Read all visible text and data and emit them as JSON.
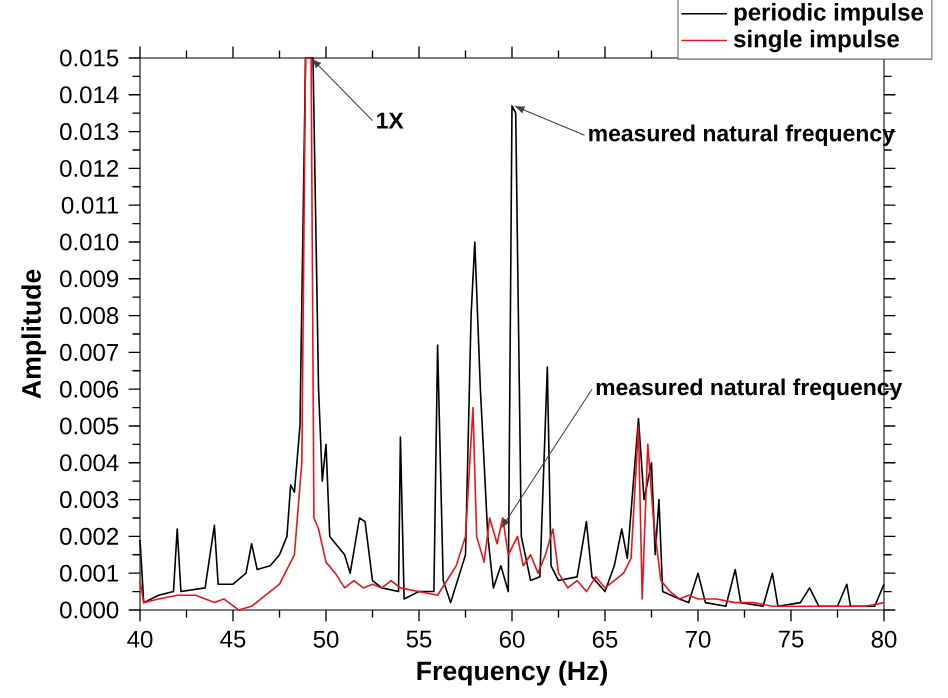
{
  "chart_data": {
    "type": "line",
    "xlabel": "Frequency (Hz)",
    "ylabel": "Amplitude",
    "xlim": [
      40,
      80
    ],
    "xticks": [
      40,
      45,
      50,
      55,
      60,
      65,
      70,
      75,
      80
    ],
    "ylim": [
      0,
      0.015
    ],
    "yticks": [
      {
        "value": 0,
        "label": "0.000"
      },
      {
        "value": 0.001,
        "label": "0.001"
      },
      {
        "value": 0.002,
        "label": "0.002"
      },
      {
        "value": 0.003,
        "label": "0.003"
      },
      {
        "value": 0.004,
        "label": "0.004"
      },
      {
        "value": 0.005,
        "label": "0.005"
      },
      {
        "value": 0.006,
        "label": "0.006"
      },
      {
        "value": 0.007,
        "label": "0.007"
      },
      {
        "value": 0.008,
        "label": "0.008"
      },
      {
        "value": 0.009,
        "label": "0.009"
      },
      {
        "value": 0.01,
        "label": "0.010"
      },
      {
        "value": 0.011,
        "label": "0.011"
      },
      {
        "value": 0.012,
        "label": "0.012"
      },
      {
        "value": 0.013,
        "label": "0.013"
      },
      {
        "value": 0.014,
        "label": "0.014"
      },
      {
        "value": 0.015,
        "label": "0.015"
      }
    ],
    "legend": "top right",
    "grid": false,
    "marker": "none",
    "line_style": "solid",
    "series": [
      {
        "name": "periodic impulse",
        "color": "#000000",
        "x": [
          40,
          40.2,
          41,
          41.8,
          42,
          42.2,
          43.5,
          44,
          44.2,
          45,
          45.7,
          46,
          46.3,
          47,
          47.5,
          47.9,
          48.1,
          48.3,
          48.6,
          48.9,
          49.3,
          49.6,
          49.8,
          50,
          50.2,
          51,
          51.3,
          51.8,
          52.1,
          52.5,
          53,
          53.9,
          54,
          54.2,
          55,
          55.8,
          56,
          56.3,
          56.7,
          57.5,
          57.8,
          58,
          58.3,
          58.7,
          59,
          59.4,
          59.8,
          60,
          60.2,
          60.5,
          61,
          61.5,
          61.9,
          62.1,
          62.5,
          63.5,
          64,
          64.3,
          65,
          65.5,
          65.9,
          66.2,
          66.8,
          67.1,
          67.5,
          67.7,
          67.9,
          68.1,
          69,
          69.5,
          70,
          70.4,
          71.5,
          72,
          72.3,
          73.5,
          74,
          74.3,
          75.5,
          76,
          76.5,
          77.5,
          78,
          78.2,
          79.5,
          80
        ],
        "values": [
          0.0019,
          0.0002,
          0.0004,
          0.0005,
          0.0022,
          0.0005,
          0.0006,
          0.0023,
          0.0007,
          0.0007,
          0.001,
          0.0018,
          0.0011,
          0.0012,
          0.0015,
          0.002,
          0.0034,
          0.0032,
          0.005,
          0.015,
          0.015,
          0.006,
          0.0035,
          0.0045,
          0.002,
          0.0015,
          0.001,
          0.0025,
          0.0024,
          0.0008,
          0.0006,
          0.0005,
          0.0047,
          0.0003,
          0.0005,
          0.0005,
          0.0072,
          0.0008,
          0.0002,
          0.0015,
          0.008,
          0.01,
          0.006,
          0.002,
          0.0006,
          0.0012,
          0.0005,
          0.0137,
          0.0135,
          0.002,
          0.0008,
          0.0009,
          0.0066,
          0.0012,
          0.0008,
          0.0009,
          0.0024,
          0.0009,
          0.0005,
          0.0012,
          0.0022,
          0.0014,
          0.0052,
          0.003,
          0.004,
          0.0015,
          0.003,
          0.0005,
          0.0003,
          0.0002,
          0.001,
          0.0002,
          0.0001,
          0.0011,
          0.0002,
          0.0001,
          0.001,
          0.0001,
          0.0002,
          0.0006,
          0.0001,
          0.0001,
          0.0007,
          0.0001,
          0.0001,
          0.0007
        ]
      },
      {
        "name": "single impulse",
        "color": "#e8141e",
        "x": [
          40,
          40.2,
          41,
          42,
          43,
          44,
          44.5,
          45.3,
          46,
          46.5,
          47.5,
          48.3,
          48.7,
          48.9,
          49.2,
          49.35,
          49.6,
          50,
          50.5,
          51,
          51.5,
          52,
          52.5,
          53,
          53.5,
          54,
          55,
          56,
          56.5,
          57,
          57.5,
          57.9,
          58.1,
          58.5,
          58.8,
          59.2,
          59.5,
          59.8,
          60.3,
          60.6,
          61,
          61.4,
          61.8,
          62.2,
          62.5,
          63,
          63.5,
          64,
          64.5,
          65,
          65.5,
          66,
          66.4,
          66.8,
          67,
          67.3,
          67.6,
          68,
          68.5,
          69,
          69.5,
          70,
          71,
          72,
          73,
          74,
          75,
          76,
          77,
          78,
          79,
          80
        ],
        "values": [
          0.0008,
          0.0002,
          0.0003,
          0.0004,
          0.0004,
          0.0002,
          0.0003,
          0.0,
          0.0001,
          0.0003,
          0.0007,
          0.0015,
          0.004,
          0.015,
          0.015,
          0.0025,
          0.0022,
          0.0013,
          0.001,
          0.0006,
          0.0008,
          0.0006,
          0.0007,
          0.0006,
          0.0008,
          0.0006,
          0.0005,
          0.0004,
          0.0008,
          0.0012,
          0.002,
          0.0055,
          0.002,
          0.0013,
          0.0025,
          0.0018,
          0.0025,
          0.0015,
          0.002,
          0.0012,
          0.0015,
          0.001,
          0.0015,
          0.0022,
          0.001,
          0.0006,
          0.0008,
          0.0005,
          0.0009,
          0.0006,
          0.0008,
          0.001,
          0.0014,
          0.005,
          0.0003,
          0.0045,
          0.0025,
          0.0008,
          0.0005,
          0.0003,
          0.0004,
          0.0003,
          0.0003,
          0.0002,
          0.0002,
          0.0001,
          0.0001,
          0.0001,
          0.0001,
          0.0001,
          0.0001,
          0.0002
        ]
      }
    ],
    "annotations": [
      {
        "text": "1X",
        "x": 49.2,
        "y": 0.015
      },
      {
        "text": "measured natural frequency",
        "x": 60.1,
        "y": 0.0137
      },
      {
        "text": "measured natural frequency",
        "x": 59.4,
        "y": 0.0022
      }
    ]
  }
}
